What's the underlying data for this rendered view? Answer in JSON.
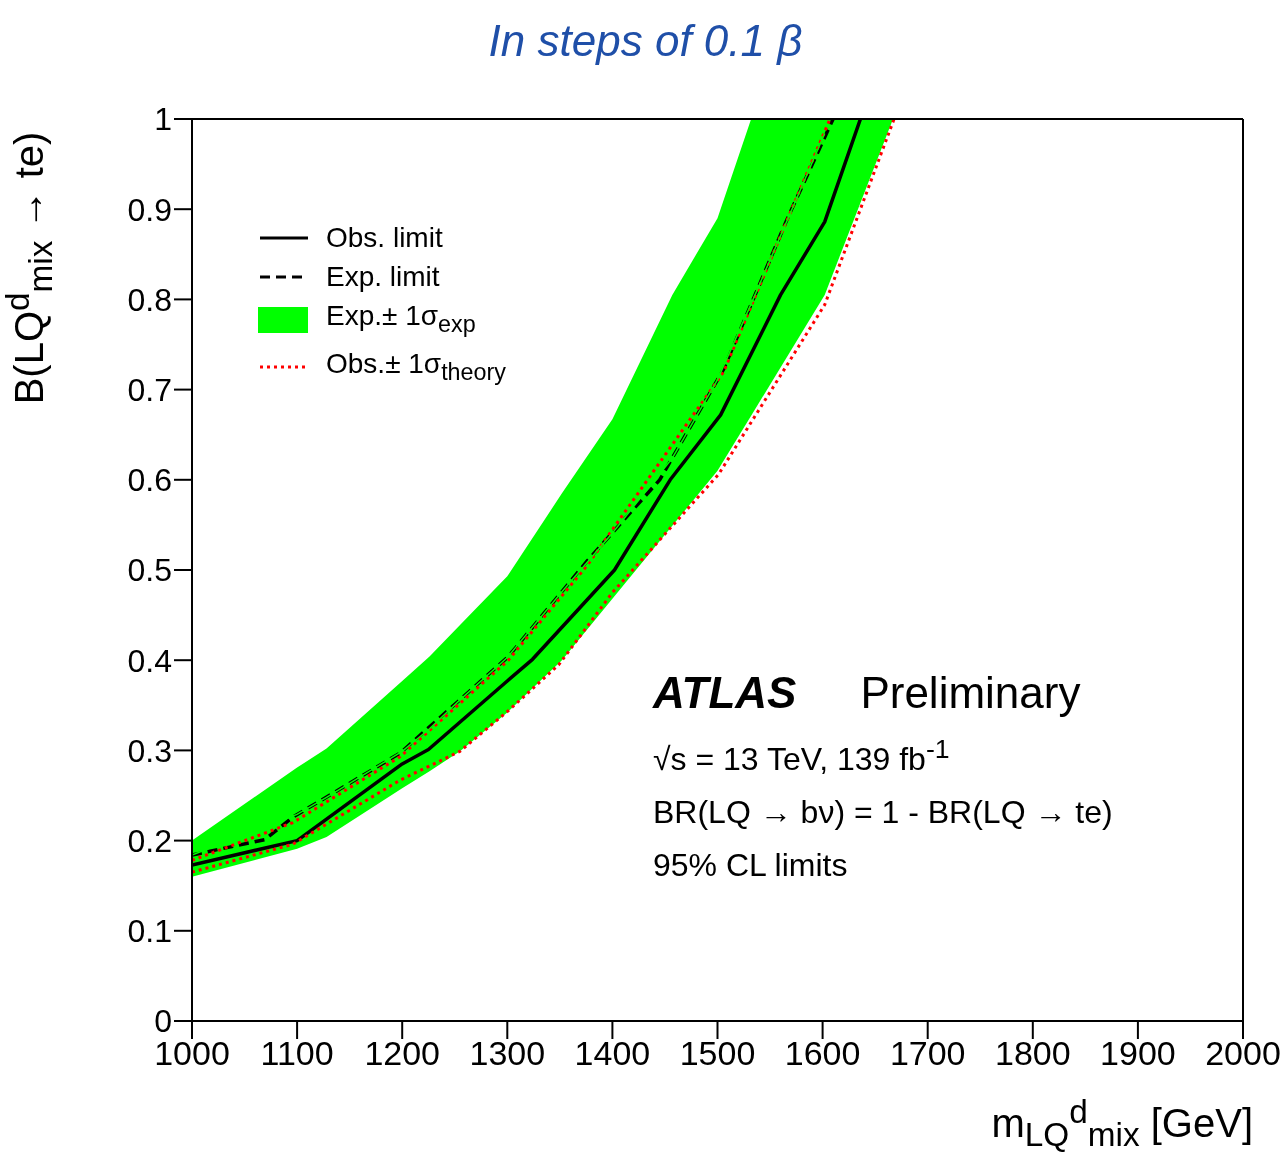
{
  "chart_data": {
    "type": "line",
    "title": "In steps of 0.1 β",
    "xlabel": "m$_{LQ}$$^{d}$$_{mix}$ [GeV]",
    "ylabel": "B(LQ$^{d}$$_{mix}$ → te)",
    "xlim": [
      1000,
      2000
    ],
    "xticks": [
      1000,
      1100,
      1200,
      1300,
      1400,
      1500,
      1600,
      1700,
      1800,
      1900,
      2000
    ],
    "ylim": [
      0,
      1
    ],
    "yticks": [
      0,
      0.1,
      0.2,
      0.3,
      0.4,
      0.5,
      0.6,
      0.7,
      0.8,
      0.9,
      1
    ],
    "grid": false,
    "legend": "top left",
    "marker": "none",
    "series": [
      {
        "name": "Obs. limit",
        "color": "#000000",
        "line_style": "solid",
        "x": [
          1000,
          1100,
          1200,
          1225,
          1300,
          1324,
          1402,
          1455,
          1503,
          1560,
          1602,
          1636
        ],
        "values": [
          0.173,
          0.2,
          0.285,
          0.301,
          0.377,
          0.401,
          0.5,
          0.6,
          0.672,
          0.805,
          0.886,
          1.0
        ]
      },
      {
        "name": "Exp. limit",
        "color": "#000000",
        "line_style": "dashed",
        "x": [
          1000,
          1069,
          1096,
          1198,
          1301,
          1376,
          1445,
          1506,
          1567,
          1610
        ],
        "values": [
          0.184,
          0.201,
          0.226,
          0.297,
          0.404,
          0.51,
          0.6,
          0.723,
          0.891,
          1.0
        ]
      },
      {
        "name": "Exp.± 1σ$_{exp}$",
        "color": "#00ff00",
        "x": [
          1000,
          1100,
          1128,
          1200,
          1226,
          1255,
          1300,
          1352,
          1400,
          1457,
          1500,
          1532,
          1602,
          1667
        ],
        "values": [
          0.184,
          0.229,
          0.248,
          0.299,
          0.324,
          0.356,
          0.403,
          0.476,
          0.541,
          0.624,
          0.711,
          0.795,
          0.984,
          null
        ],
        "lower": [
          0.16,
          0.191,
          0.204,
          0.258,
          0.277,
          0.299,
          0.342,
          0.4,
          0.468,
          0.549,
          0.61,
          0.671,
          0.805,
          1.0
        ],
        "upper": [
          0.2,
          0.281,
          0.302,
          0.377,
          0.404,
          0.439,
          0.493,
          0.585,
          0.667,
          0.805,
          0.89,
          1.0,
          1.0,
          1.0
        ]
      },
      {
        "name": "Obs.± 1σ$_{theory}$",
        "color": "#ff0000",
        "line_style": "dotted",
        "x": [
          1000,
          1096,
          1198,
          1255,
          1301,
          1349,
          1400,
          1501,
          1602,
          1668
        ],
        "values": [
          0.165,
          0.196,
          0.267,
          0.299,
          0.344,
          0.395,
          0.475,
          0.606,
          0.794,
          1.0
        ]
      },
      {
        "color": "#ff0000",
        "line_style": "dotted",
        "x": [
          1000,
          1096,
          1198,
          1301,
          1376,
          1506,
          1567,
          1607
        ],
        "values": [
          0.178,
          0.22,
          0.293,
          0.4,
          0.505,
          0.72,
          0.89,
          1.0
        ]
      }
    ],
    "annotations": [
      "ATLAS",
      "Preliminary",
      "√s = 13 TeV, 139 fb$^{-1}$",
      "BR(LQ → bν) = 1 - BR(LQ → te)",
      "95% CL limits"
    ]
  }
}
